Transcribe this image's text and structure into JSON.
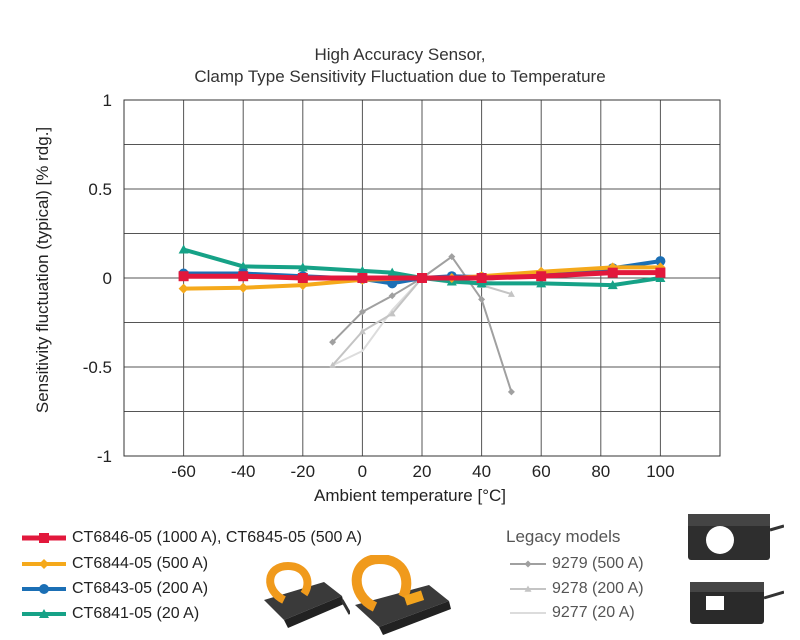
{
  "chart_data": {
    "type": "line",
    "title": [
      "High Accuracy Sensor,",
      "Clamp Type Sensitivity Fluctuation due to Temperature"
    ],
    "xlabel": "Ambient temperature [°C]",
    "ylabel": "Sensitivity fluctuation (typical) [% rdg.]",
    "xlim": [
      -80,
      120
    ],
    "ylim": [
      -1,
      1
    ],
    "xticks": [
      -60,
      -40,
      -20,
      0,
      20,
      40,
      60,
      80,
      100
    ],
    "yticks": [
      1,
      0.5,
      0,
      -0.5,
      -1
    ],
    "ytick_labels": [
      "1",
      "0.5",
      "0",
      "-0.5",
      "-1"
    ],
    "grid": true,
    "series": [
      {
        "name": "CT6846-05 (1000 A), CT6845-05 (500 A)",
        "color": "#e2183c",
        "marker": "square",
        "width": 5,
        "points": [
          [
            -60,
            0.01
          ],
          [
            -40,
            0.01
          ],
          [
            -20,
            0.0
          ],
          [
            0,
            0.0
          ],
          [
            20,
            0.0
          ],
          [
            40,
            0.0
          ],
          [
            60,
            0.01
          ],
          [
            84,
            0.03
          ],
          [
            100,
            0.03
          ]
        ]
      },
      {
        "name": "CT6844-05 (500 A)",
        "color": "#f5a91b",
        "marker": "diamond",
        "width": 4,
        "points": [
          [
            -60,
            -0.06
          ],
          [
            -40,
            -0.055
          ],
          [
            -20,
            -0.04
          ],
          [
            0,
            -0.01
          ],
          [
            20,
            0.0
          ],
          [
            30,
            0.0
          ],
          [
            40,
            0.01
          ],
          [
            60,
            0.035
          ],
          [
            84,
            0.06
          ],
          [
            100,
            0.06
          ]
        ]
      },
      {
        "name": "CT6843-05 (200 A)",
        "color": "#1b6fb5",
        "marker": "circle",
        "width": 4,
        "points": [
          [
            -60,
            0.025
          ],
          [
            -40,
            0.025
          ],
          [
            -20,
            0.01
          ],
          [
            0,
            -0.005
          ],
          [
            10,
            -0.03
          ],
          [
            20,
            0.0
          ],
          [
            30,
            0.01
          ],
          [
            40,
            0.005
          ],
          [
            60,
            0.02
          ],
          [
            84,
            0.055
          ],
          [
            100,
            0.095
          ]
        ]
      },
      {
        "name": "CT6841-05 (20 A)",
        "color": "#16a287",
        "marker": "triangle",
        "width": 4,
        "points": [
          [
            -60,
            0.16
          ],
          [
            -40,
            0.065
          ],
          [
            -20,
            0.06
          ],
          [
            0,
            0.04
          ],
          [
            10,
            0.03
          ],
          [
            20,
            0.0
          ],
          [
            30,
            -0.02
          ],
          [
            40,
            -0.03
          ],
          [
            60,
            -0.03
          ],
          [
            84,
            -0.04
          ],
          [
            100,
            0.0
          ]
        ]
      }
    ],
    "legacy_title": "Legacy models",
    "legacy_series": [
      {
        "name": "9279 (500 A)",
        "color": "#a0a0a0",
        "marker": "diamond",
        "width": 2,
        "points": [
          [
            -10,
            -0.36
          ],
          [
            0,
            -0.19
          ],
          [
            10,
            -0.1
          ],
          [
            20,
            0.0
          ],
          [
            30,
            0.12
          ],
          [
            40,
            -0.12
          ],
          [
            50,
            -0.64
          ]
        ]
      },
      {
        "name": "9278 (200 A)",
        "color": "#c4c4c4",
        "marker": "triangle",
        "width": 2,
        "points": [
          [
            -10,
            -0.49
          ],
          [
            0,
            -0.3
          ],
          [
            10,
            -0.2
          ],
          [
            20,
            0.0
          ],
          [
            30,
            -0.02
          ],
          [
            40,
            -0.04
          ],
          [
            50,
            -0.09
          ]
        ]
      },
      {
        "name": "9277 (20 A)",
        "color": "#dcdcdc",
        "marker": "none",
        "width": 2,
        "points": [
          [
            -10,
            -0.49
          ],
          [
            0,
            -0.41
          ],
          [
            10,
            -0.18
          ],
          [
            20,
            0.0
          ],
          [
            30,
            -0.03
          ],
          [
            40,
            -0.03
          ],
          [
            50,
            0.02
          ]
        ]
      }
    ]
  }
}
